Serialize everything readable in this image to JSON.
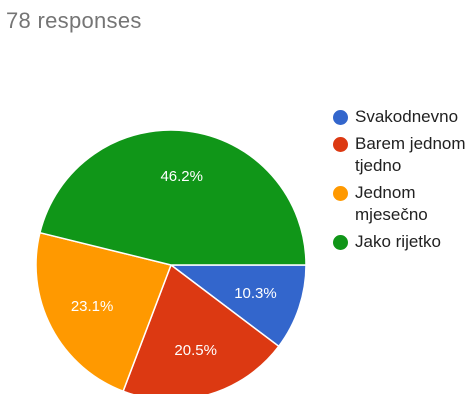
{
  "summary": {
    "responses_label": "78 responses"
  },
  "chart_data": {
    "type": "pie",
    "categories": [
      "Svakodnevno",
      "Barem jednom tjedno",
      "Jednom mjesečno",
      "Jako rijetko"
    ],
    "values": [
      10.3,
      20.5,
      23.1,
      46.2
    ],
    "value_labels": [
      "10.3%",
      "20.5%",
      "23.1%",
      "46.2%"
    ],
    "colors": [
      "#3366CC",
      "#DC3912",
      "#FF9900",
      "#109618"
    ],
    "legend_position": "right"
  }
}
